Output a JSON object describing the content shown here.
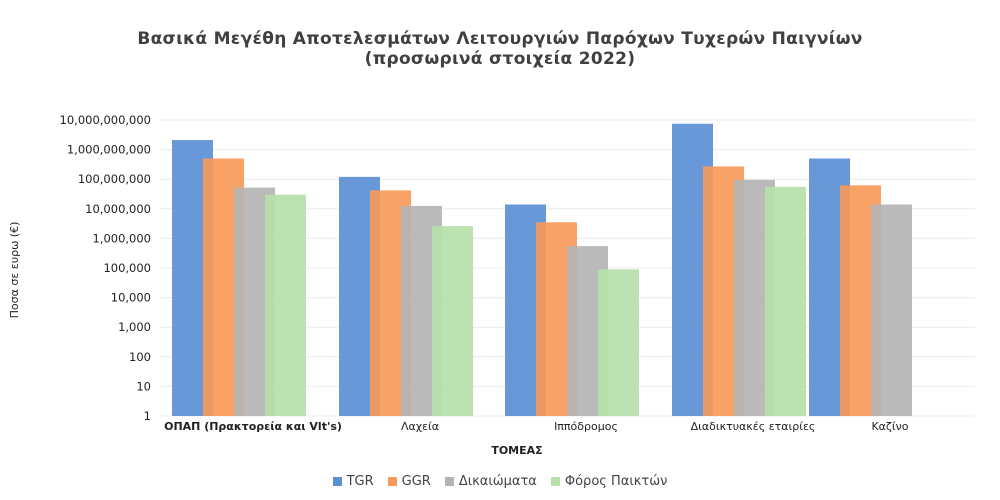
{
  "chart_data": {
    "type": "bar",
    "title": "Βασικά Μεγέθη Αποτελεσμάτων Λειτουργιών Παρόχων Τυχερών Παιγνίων",
    "subtitle": "(προσωρινά στοιχεία 2022)",
    "xlabel": "ΤΟΜΕΑΣ",
    "ylabel": "Ποσα σε ευρω (€)",
    "yscale": "log",
    "ylim": [
      1,
      10000000000
    ],
    "yticks": [
      "1",
      "10",
      "100",
      "1,000",
      "10,000",
      "100,000",
      "1,000,000",
      "10,000,000",
      "100,000,000",
      "1,000,000,000",
      "10,000,000,000"
    ],
    "categories": [
      "ΟΠΑΠ (Πρακτορεία και Vlt's)",
      "Λαχεία",
      "Ιππόδρομος",
      "Διαδικτυακές εταιρίες",
      "Καζίνο"
    ],
    "series": [
      {
        "name": "TGR",
        "color": "#5b8fd4",
        "values": [
          2100000000,
          120000000,
          14000000,
          7500000000,
          500000000
        ]
      },
      {
        "name": "GGR",
        "color": "#f79a5a",
        "values": [
          500000000,
          42000000,
          3500000,
          270000000,
          62000000
        ]
      },
      {
        "name": "Δικαιώματα",
        "color": "#b4b4b4",
        "values": [
          52000000,
          12500000,
          550000,
          95000000,
          14000000
        ]
      },
      {
        "name": "Φόρος Παικτών",
        "color": "#b6dfaa",
        "values": [
          30000000,
          2600000,
          90000,
          55000000,
          null
        ]
      }
    ],
    "legend_position": "bottom",
    "grid": true
  }
}
